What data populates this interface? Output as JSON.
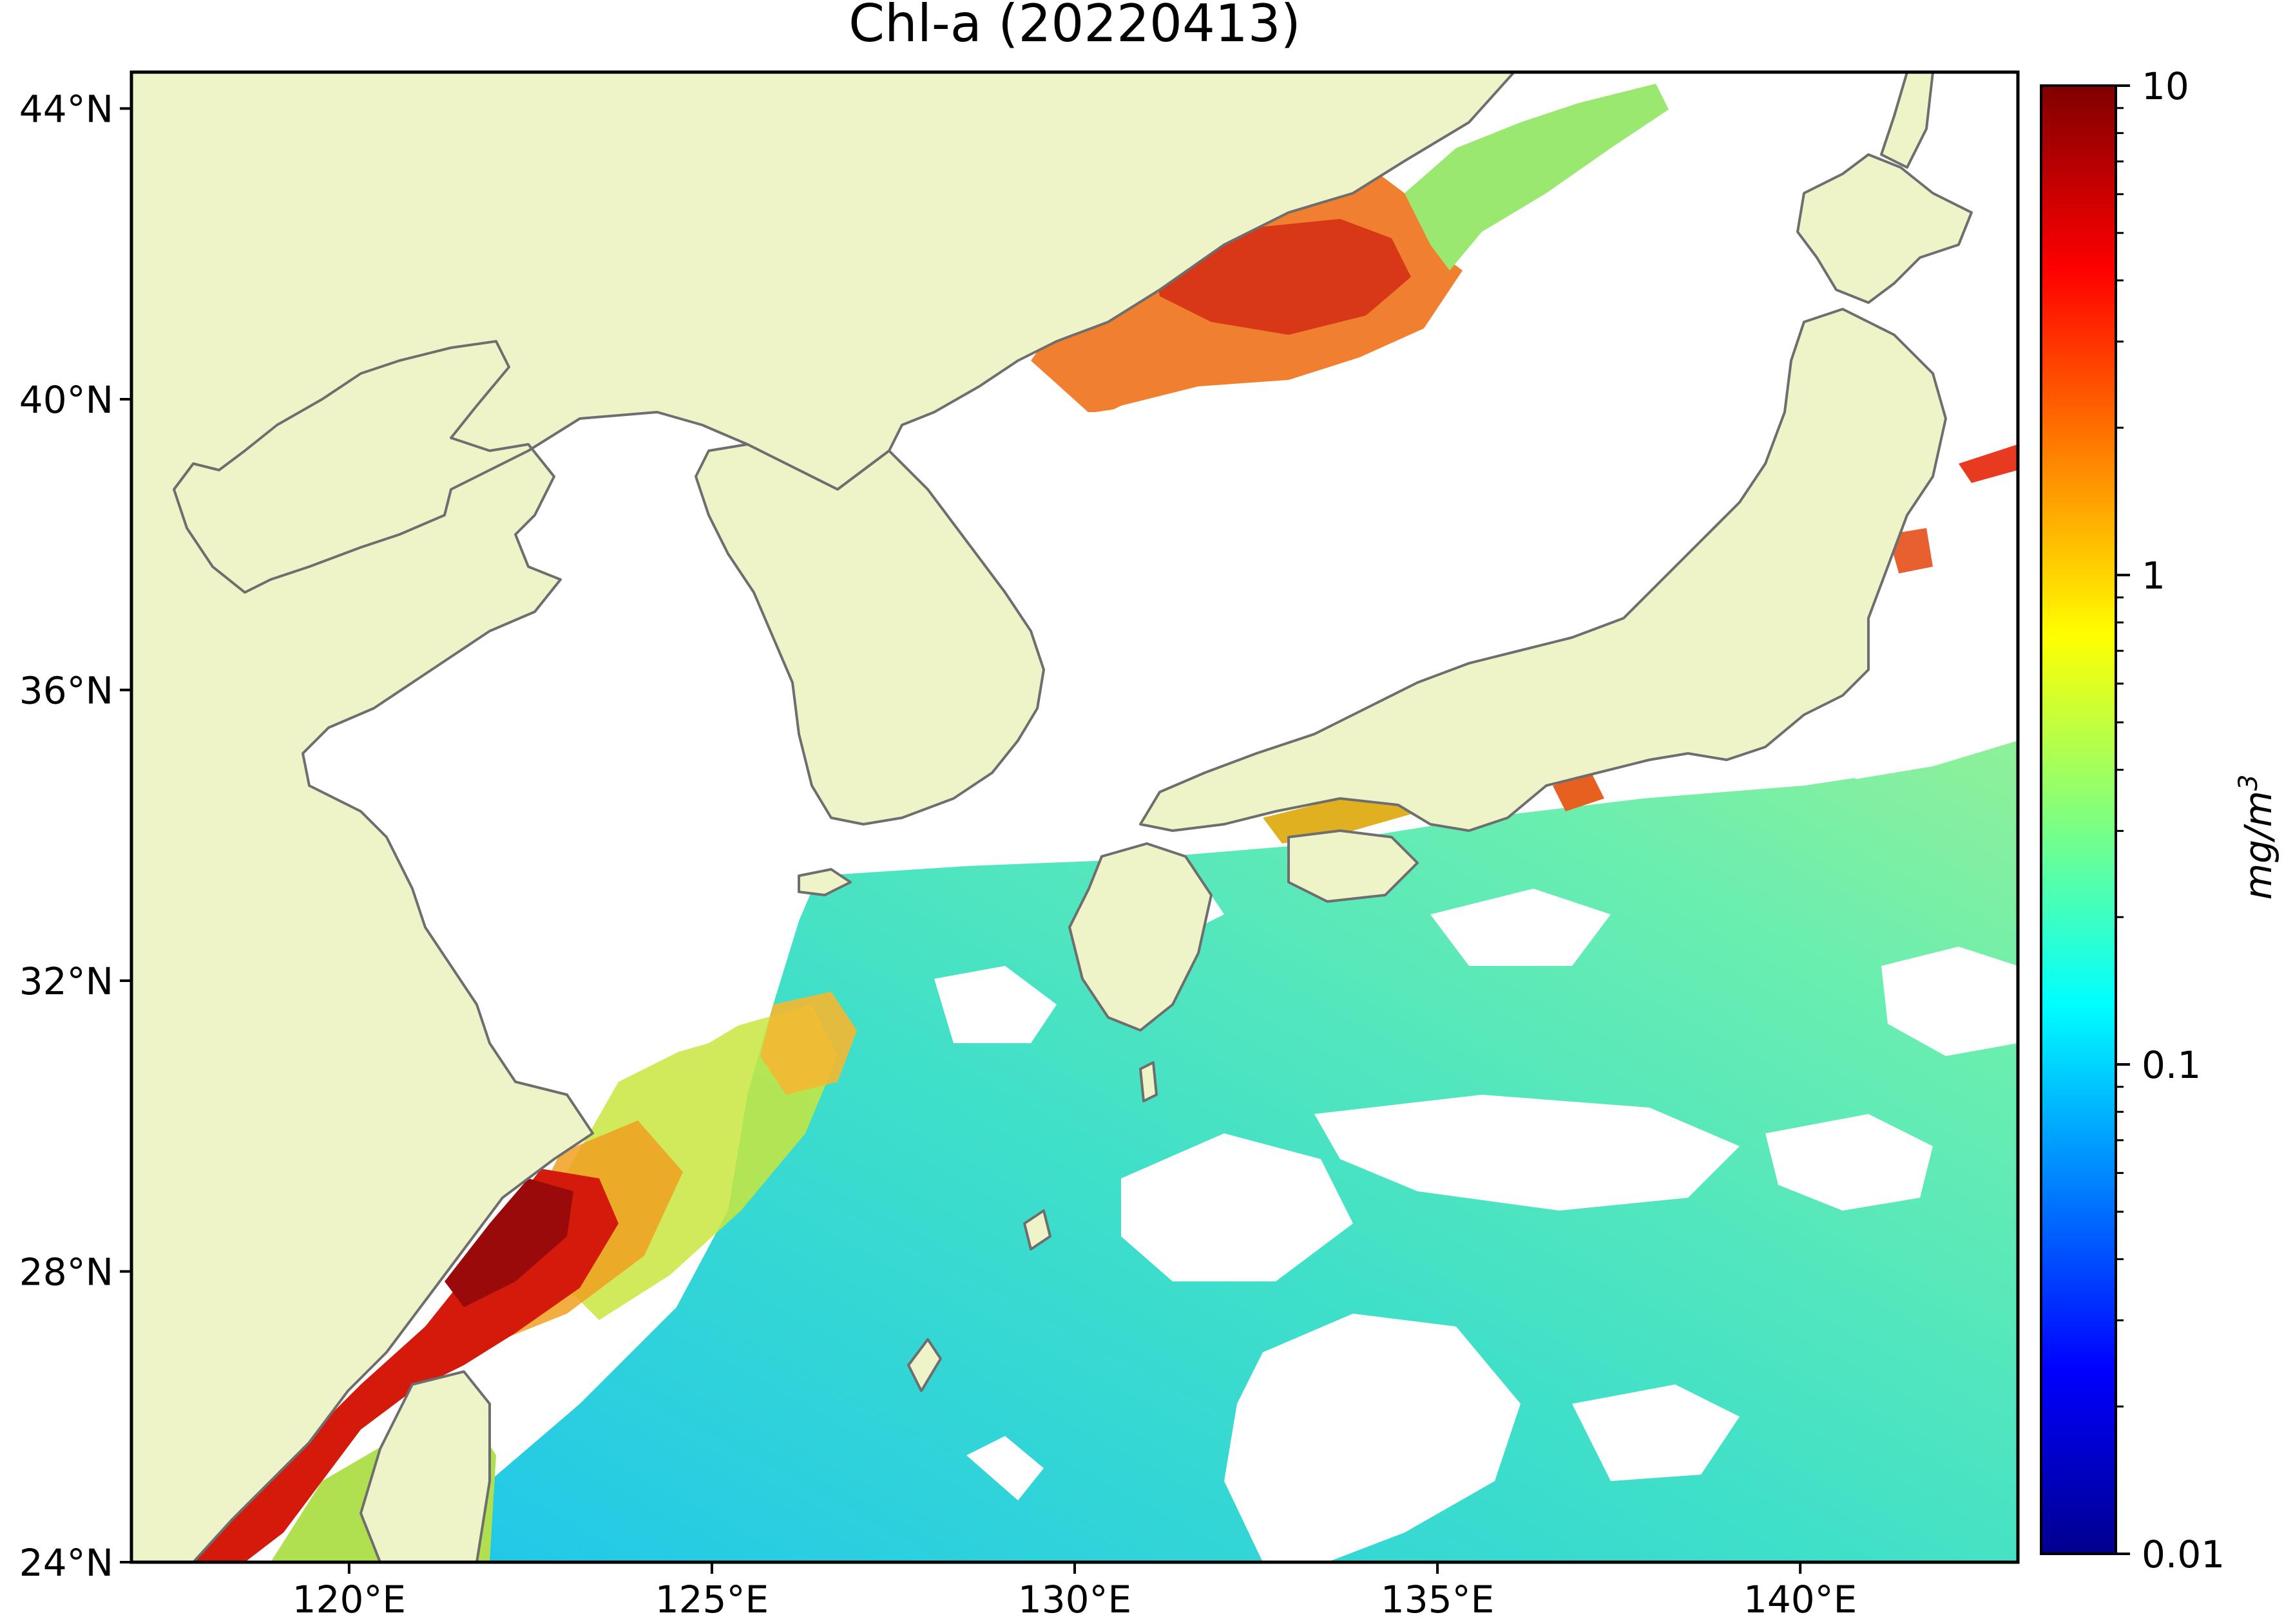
{
  "title": "Chl-a (20220413)",
  "map": {
    "lon_range": [
      117,
      143
    ],
    "lat_range": [
      24,
      44.5
    ],
    "colors": {
      "land": "#eff4c8",
      "cloud": "#ffffff",
      "coast": "#6e6e6e"
    },
    "lon_ticks": [
      {
        "value": 120,
        "label": "120°E"
      },
      {
        "value": 125,
        "label": "125°E"
      },
      {
        "value": 130,
        "label": "130°E"
      },
      {
        "value": 135,
        "label": "135°E"
      },
      {
        "value": 140,
        "label": "140°E"
      }
    ],
    "lat_ticks": [
      {
        "value": 24,
        "label": "24°N"
      },
      {
        "value": 28,
        "label": "28°N"
      },
      {
        "value": 32,
        "label": "32°N"
      },
      {
        "value": 36,
        "label": "36°N"
      },
      {
        "value": 40,
        "label": "40°N"
      },
      {
        "value": 44,
        "label": "44°N"
      }
    ]
  },
  "colorbar": {
    "label": "mg/m",
    "label_superscript": "3",
    "scale": "log",
    "range": [
      0.01,
      10
    ],
    "colormap": "jet",
    "ticks": [
      {
        "value": 10,
        "label": "10"
      },
      {
        "value": 1,
        "label": "1"
      },
      {
        "value": 0.1,
        "label": "0.1"
      },
      {
        "value": 0.01,
        "label": "0.01"
      }
    ]
  }
}
